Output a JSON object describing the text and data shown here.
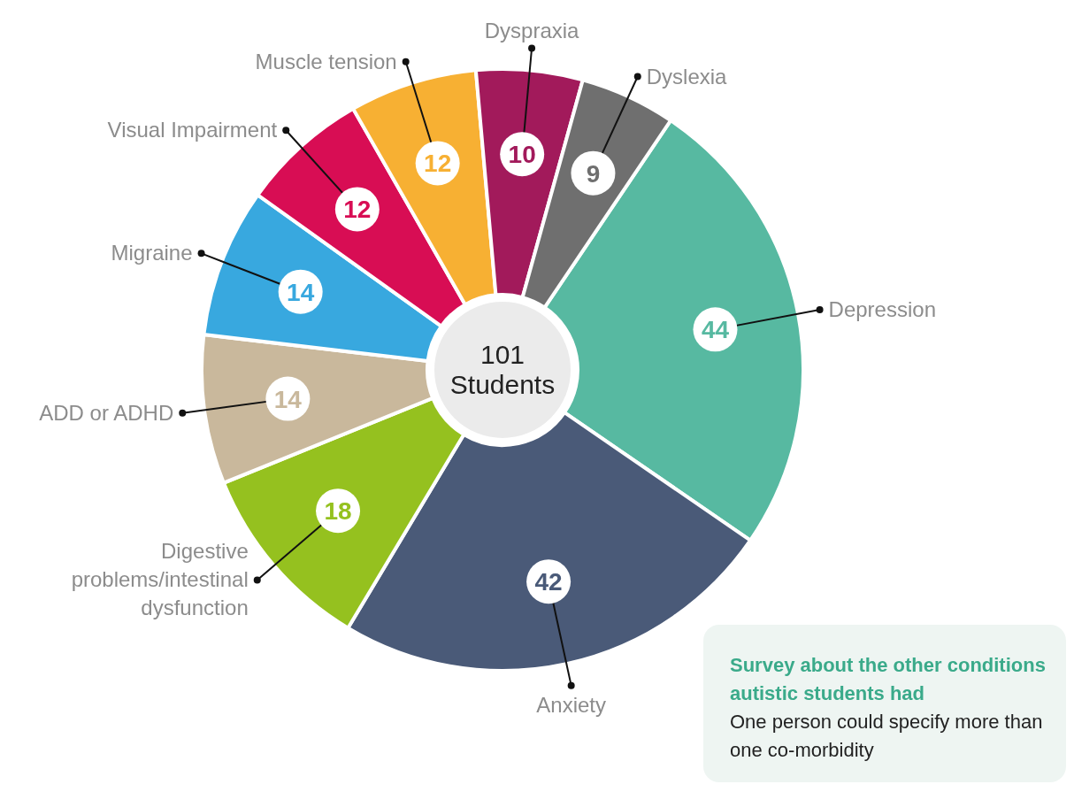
{
  "chart_data": {
    "type": "donut",
    "categories": [
      "Depression",
      "Anxiety",
      "Digestive problems/intestinal dysfunction",
      "ADD or ADHD",
      "Migraine",
      "Visual Impairment",
      "Muscle tension",
      "Dyspraxia",
      "Dyslexia"
    ],
    "values": [
      44,
      42,
      18,
      14,
      14,
      12,
      12,
      10,
      9
    ],
    "colors": [
      "#57b9a1",
      "#4a5a78",
      "#95c11f",
      "#c9b89c",
      "#38a8df",
      "#d80d54",
      "#f7b033",
      "#a21a5b",
      "#6f6f6f"
    ],
    "data_labels": true,
    "annotations": [
      "101 Students",
      "Survey about the other conditions autistic students had",
      "One person could specify more than one co-morbidity"
    ]
  }
}
